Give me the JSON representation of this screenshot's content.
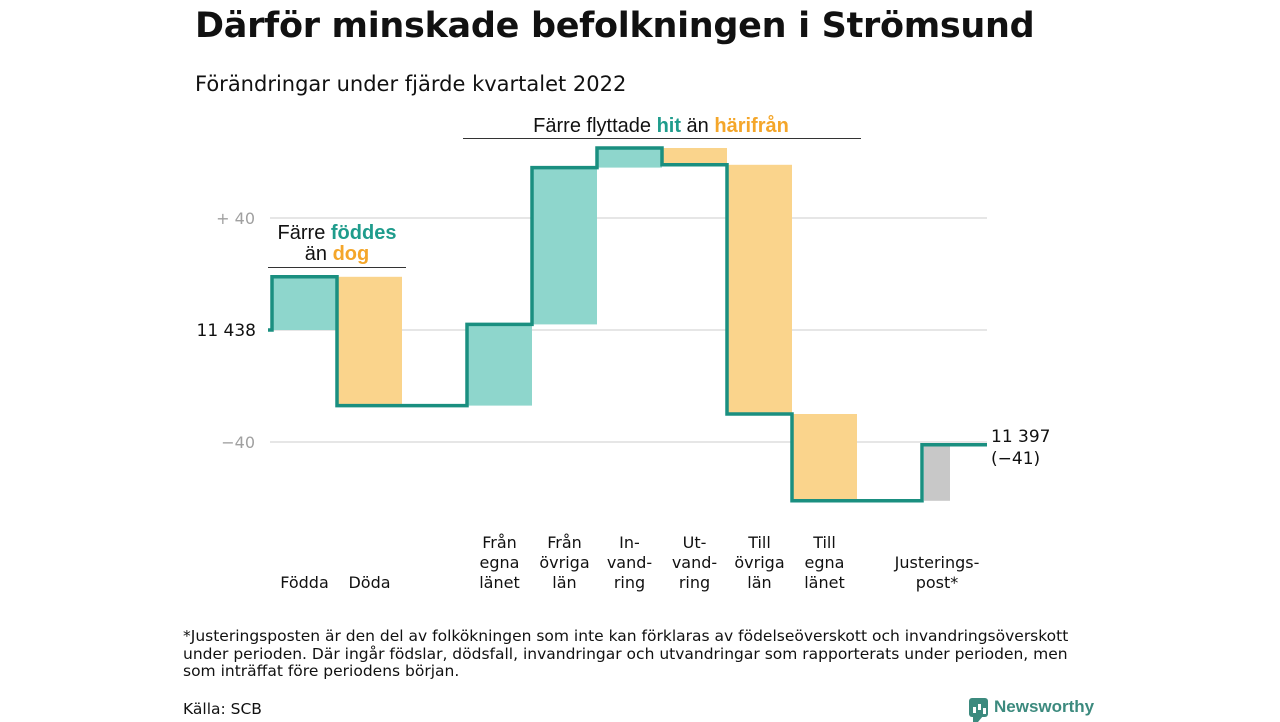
{
  "header": {
    "title": "Därför minskade befolkningen i Strömsund",
    "subtitle": "Förändringar under fjärde kvartalet 2022"
  },
  "chart_data": {
    "type": "waterfall",
    "start_value": 11438,
    "start_label": "11 438",
    "end_label_lines": [
      "11 397",
      "(−41)"
    ],
    "y_ticks": [
      {
        "value": 40,
        "label": "+ 40"
      },
      {
        "value": 0,
        "label": ""
      },
      {
        "value": -40,
        "label": "−40"
      }
    ],
    "ylim": [
      -65,
      65
    ],
    "steps": [
      {
        "label_lines": [
          "Födda"
        ],
        "change": 19,
        "kind": "inflow"
      },
      {
        "label_lines": [
          "Döda"
        ],
        "change": -46,
        "kind": "outflow"
      },
      {
        "label_lines": [
          "Från",
          "egna",
          "länet"
        ],
        "change": 29,
        "kind": "inflow"
      },
      {
        "label_lines": [
          "Från",
          "övriga",
          "län"
        ],
        "change": 56,
        "kind": "inflow"
      },
      {
        "label_lines": [
          "In-",
          "vand-",
          "ring"
        ],
        "change": 7,
        "kind": "inflow"
      },
      {
        "label_lines": [
          "Ut-",
          "vand-",
          "ring"
        ],
        "change": -6,
        "kind": "outflow"
      },
      {
        "label_lines": [
          "Till",
          "övriga",
          "län"
        ],
        "change": -89,
        "kind": "outflow"
      },
      {
        "label_lines": [
          "Till",
          "egna",
          "länet"
        ],
        "change": -31,
        "kind": "outflow"
      },
      {
        "label_lines": [
          "Justerings-",
          "post*"
        ],
        "change": 20,
        "kind": "adjustment"
      }
    ],
    "annotations": [
      {
        "parts": [
          {
            "text": "Färre ",
            "color": "#111111"
          },
          {
            "text": "föddes",
            "color": "#1f9c8c"
          }
        ],
        "parts2": [
          {
            "text": "än ",
            "color": "#111111"
          },
          {
            "text": "dog",
            "color": "#f4a62a"
          }
        ]
      },
      {
        "parts": [
          {
            "text": "Färre flyttade ",
            "color": "#111111"
          },
          {
            "text": "hit",
            "color": "#1f9c8c"
          },
          {
            "text": " än ",
            "color": "#111111"
          },
          {
            "text": "härifrån",
            "color": "#f4a62a"
          }
        ]
      }
    ],
    "colors": {
      "inflow": "#8ed6cc",
      "outflow": "#fad48c",
      "adjustment": "#c8c8c8",
      "line": "#1a8f80",
      "grid": "#dddddd"
    }
  },
  "footer": {
    "footnote": "*Justeringsposten är den del av folkökningen som inte kan förklaras av födelseöverskott och invandringsöverskott under perioden. Där ingår födslar, dödsfall, invandringar och utvandringar som rapporterats under perioden, men som inträffat före periodens början.",
    "source": "Källa: SCB",
    "brand": "Newsworthy"
  }
}
